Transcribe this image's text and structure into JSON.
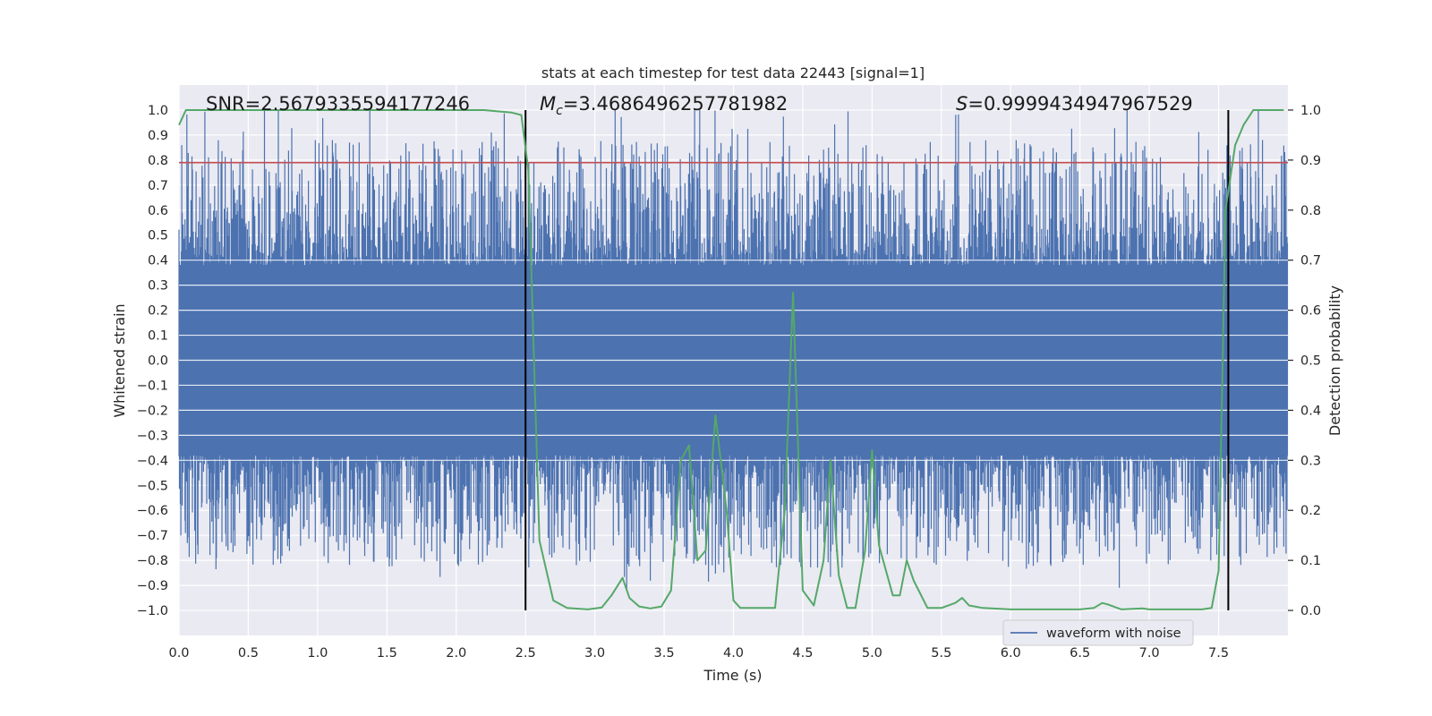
{
  "chart_data": {
    "type": "line",
    "title": "stats at each timestep for test data 22443 [signal=1]",
    "xlabel": "Time (s)",
    "ylabel": "Whitened strain",
    "y2label": "Detection probability",
    "xlim": [
      0,
      8
    ],
    "ylim": [
      -1.1,
      1.1
    ],
    "y2lim": [
      -0.05,
      1.05
    ],
    "x_ticks": [
      0.0,
      0.5,
      1.0,
      1.5,
      2.0,
      2.5,
      3.0,
      3.5,
      4.0,
      4.5,
      5.0,
      5.5,
      6.0,
      6.5,
      7.0,
      7.5
    ],
    "x_tick_labels": [
      "0.0",
      "0.5",
      "1.0",
      "1.5",
      "2.0",
      "2.5",
      "3.0",
      "3.5",
      "4.0",
      "4.5",
      "5.0",
      "5.5",
      "6.0",
      "6.5",
      "7.0",
      "7.5"
    ],
    "y_ticks": [
      1.0,
      0.9,
      0.8,
      0.7,
      0.6,
      0.5,
      0.4,
      0.3,
      0.2,
      0.1,
      0.0,
      -0.1,
      -0.2,
      -0.3,
      -0.4,
      -0.5,
      -0.6,
      -0.7,
      -0.8,
      -0.9,
      -1.0
    ],
    "y_tick_labels": [
      "1.0",
      "0.9",
      "0.8",
      "0.7",
      "0.6",
      "0.5",
      "0.4",
      "0.3",
      "0.2",
      "0.1",
      "0.0",
      "−0.1",
      "−0.2",
      "−0.3",
      "−0.4",
      "−0.5",
      "−0.6",
      "−0.7",
      "−0.8",
      "−0.9",
      "−1.0"
    ],
    "y2_ticks": [
      1.0,
      0.9,
      0.8,
      0.7,
      0.6,
      0.5,
      0.4,
      0.3,
      0.2,
      0.1,
      0.0
    ],
    "y2_tick_labels": [
      "1.0",
      "0.9",
      "0.8",
      "0.7",
      "0.6",
      "0.5",
      "0.4",
      "0.3",
      "0.2",
      "0.1",
      "0.0"
    ],
    "series": [
      {
        "name": "waveform with noise",
        "axis": "left",
        "color": "#4c72b0",
        "description_of_values": "dense noisy strain, envelope approx +/-0.4 with spikes to +1.0 and -0.9"
      },
      {
        "name": "detection probability",
        "axis": "right",
        "color": "#55a868",
        "x": [
          0.0,
          0.05,
          0.1,
          0.5,
          1.0,
          1.5,
          2.0,
          2.2,
          2.4,
          2.47,
          2.52,
          2.6,
          2.7,
          2.8,
          2.95,
          3.05,
          3.12,
          3.2,
          3.25,
          3.32,
          3.4,
          3.48,
          3.55,
          3.62,
          3.68,
          3.74,
          3.8,
          3.87,
          3.95,
          4.0,
          4.05,
          4.15,
          4.3,
          4.37,
          4.43,
          4.5,
          4.58,
          4.65,
          4.7,
          4.76,
          4.82,
          4.88,
          4.95,
          5.0,
          5.05,
          5.15,
          5.2,
          5.25,
          5.3,
          5.4,
          5.5,
          5.6,
          5.65,
          5.7,
          5.8,
          6.0,
          6.2,
          6.5,
          6.6,
          6.66,
          6.7,
          6.8,
          6.95,
          7.0,
          7.2,
          7.38,
          7.45,
          7.5,
          7.55,
          7.62,
          7.68,
          7.75,
          7.82,
          7.9,
          7.97
        ],
        "values": [
          0.97,
          1.0,
          1.0,
          1.0,
          1.0,
          1.0,
          1.0,
          1.0,
          0.995,
          0.99,
          0.88,
          0.14,
          0.02,
          0.005,
          0.002,
          0.006,
          0.03,
          0.065,
          0.025,
          0.008,
          0.004,
          0.008,
          0.04,
          0.3,
          0.33,
          0.1,
          0.12,
          0.39,
          0.2,
          0.02,
          0.005,
          0.005,
          0.005,
          0.2,
          0.635,
          0.04,
          0.01,
          0.1,
          0.3,
          0.07,
          0.005,
          0.005,
          0.12,
          0.32,
          0.13,
          0.03,
          0.03,
          0.1,
          0.06,
          0.005,
          0.005,
          0.015,
          0.025,
          0.01,
          0.005,
          0.002,
          0.002,
          0.002,
          0.005,
          0.015,
          0.012,
          0.002,
          0.004,
          0.002,
          0.002,
          0.002,
          0.005,
          0.08,
          0.8,
          0.93,
          0.97,
          1.0,
          1.0,
          1.0,
          1.0
        ]
      }
    ],
    "threshold_line": {
      "axis": "left",
      "value": 0.79,
      "color": "#c44e52"
    },
    "vertical_lines": [
      {
        "x": 2.5,
        "y_from": -1.0,
        "y_to": 1.0,
        "color": "#000000"
      },
      {
        "x": 7.57,
        "y_from": -1.0,
        "y_to": 1.0,
        "color": "#000000"
      }
    ],
    "annotations": {
      "snr": "SNR=2.5679335594177246",
      "mc_symbol": "M",
      "mc_sub": "c",
      "mc_value": "=3.4686496257781982",
      "s_symbol": "S",
      "s_value": "=0.9999434947967529"
    },
    "legend": {
      "position": "bottom-right",
      "entries": [
        "waveform with noise"
      ]
    },
    "grid": true,
    "colors": {
      "background": "#eaeaf2",
      "grid": "#ffffff"
    }
  }
}
